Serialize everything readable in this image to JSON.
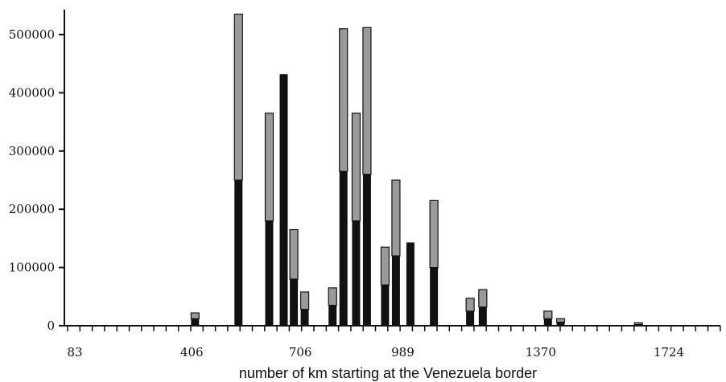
{
  "chart_data": {
    "type": "bar",
    "title": "",
    "xlabel": "number of km starting at the Venezuela border",
    "ylabel": "",
    "ylim": [
      0,
      550000
    ],
    "xlim": [
      0,
      1900
    ],
    "y_ticks": [
      0,
      100000,
      200000,
      300000,
      400000,
      500000
    ],
    "y_tick_labels": [
      "0",
      "100000",
      "200000",
      "300000",
      "400000",
      "500000"
    ],
    "x_ticks": [
      83,
      406,
      706,
      989,
      1370,
      1724
    ],
    "x_tick_labels": [
      "83",
      "406",
      "706",
      "989",
      "1370",
      "1724"
    ],
    "grid": false,
    "legend": "none",
    "colors": {
      "dark": "#111111",
      "light": "#9a9a9a",
      "axis": "#111111"
    },
    "series": [
      {
        "values": [
          {
            "x": 415,
            "total": 22000,
            "dark": 12000
          },
          {
            "x": 535,
            "total": 535000,
            "dark": 250000
          },
          {
            "x": 620,
            "total": 365000,
            "dark": 180000
          },
          {
            "x": 660,
            "total": 432000,
            "dark": 432000
          },
          {
            "x": 688,
            "total": 165000,
            "dark": 80000
          },
          {
            "x": 718,
            "total": 58000,
            "dark": 28000
          },
          {
            "x": 795,
            "total": 65000,
            "dark": 35000
          },
          {
            "x": 825,
            "total": 510000,
            "dark": 265000
          },
          {
            "x": 860,
            "total": 365000,
            "dark": 180000
          },
          {
            "x": 890,
            "total": 512000,
            "dark": 260000
          },
          {
            "x": 940,
            "total": 135000,
            "dark": 70000
          },
          {
            "x": 970,
            "total": 250000,
            "dark": 120000
          },
          {
            "x": 1010,
            "total": 143000,
            "dark": 143000
          },
          {
            "x": 1075,
            "total": 215000,
            "dark": 100000
          },
          {
            "x": 1175,
            "total": 47000,
            "dark": 25000
          },
          {
            "x": 1210,
            "total": 62000,
            "dark": 32000
          },
          {
            "x": 1390,
            "total": 25000,
            "dark": 12000
          },
          {
            "x": 1425,
            "total": 12000,
            "dark": 6000
          },
          {
            "x": 1640,
            "total": 5000,
            "dark": 2000
          }
        ]
      }
    ]
  }
}
